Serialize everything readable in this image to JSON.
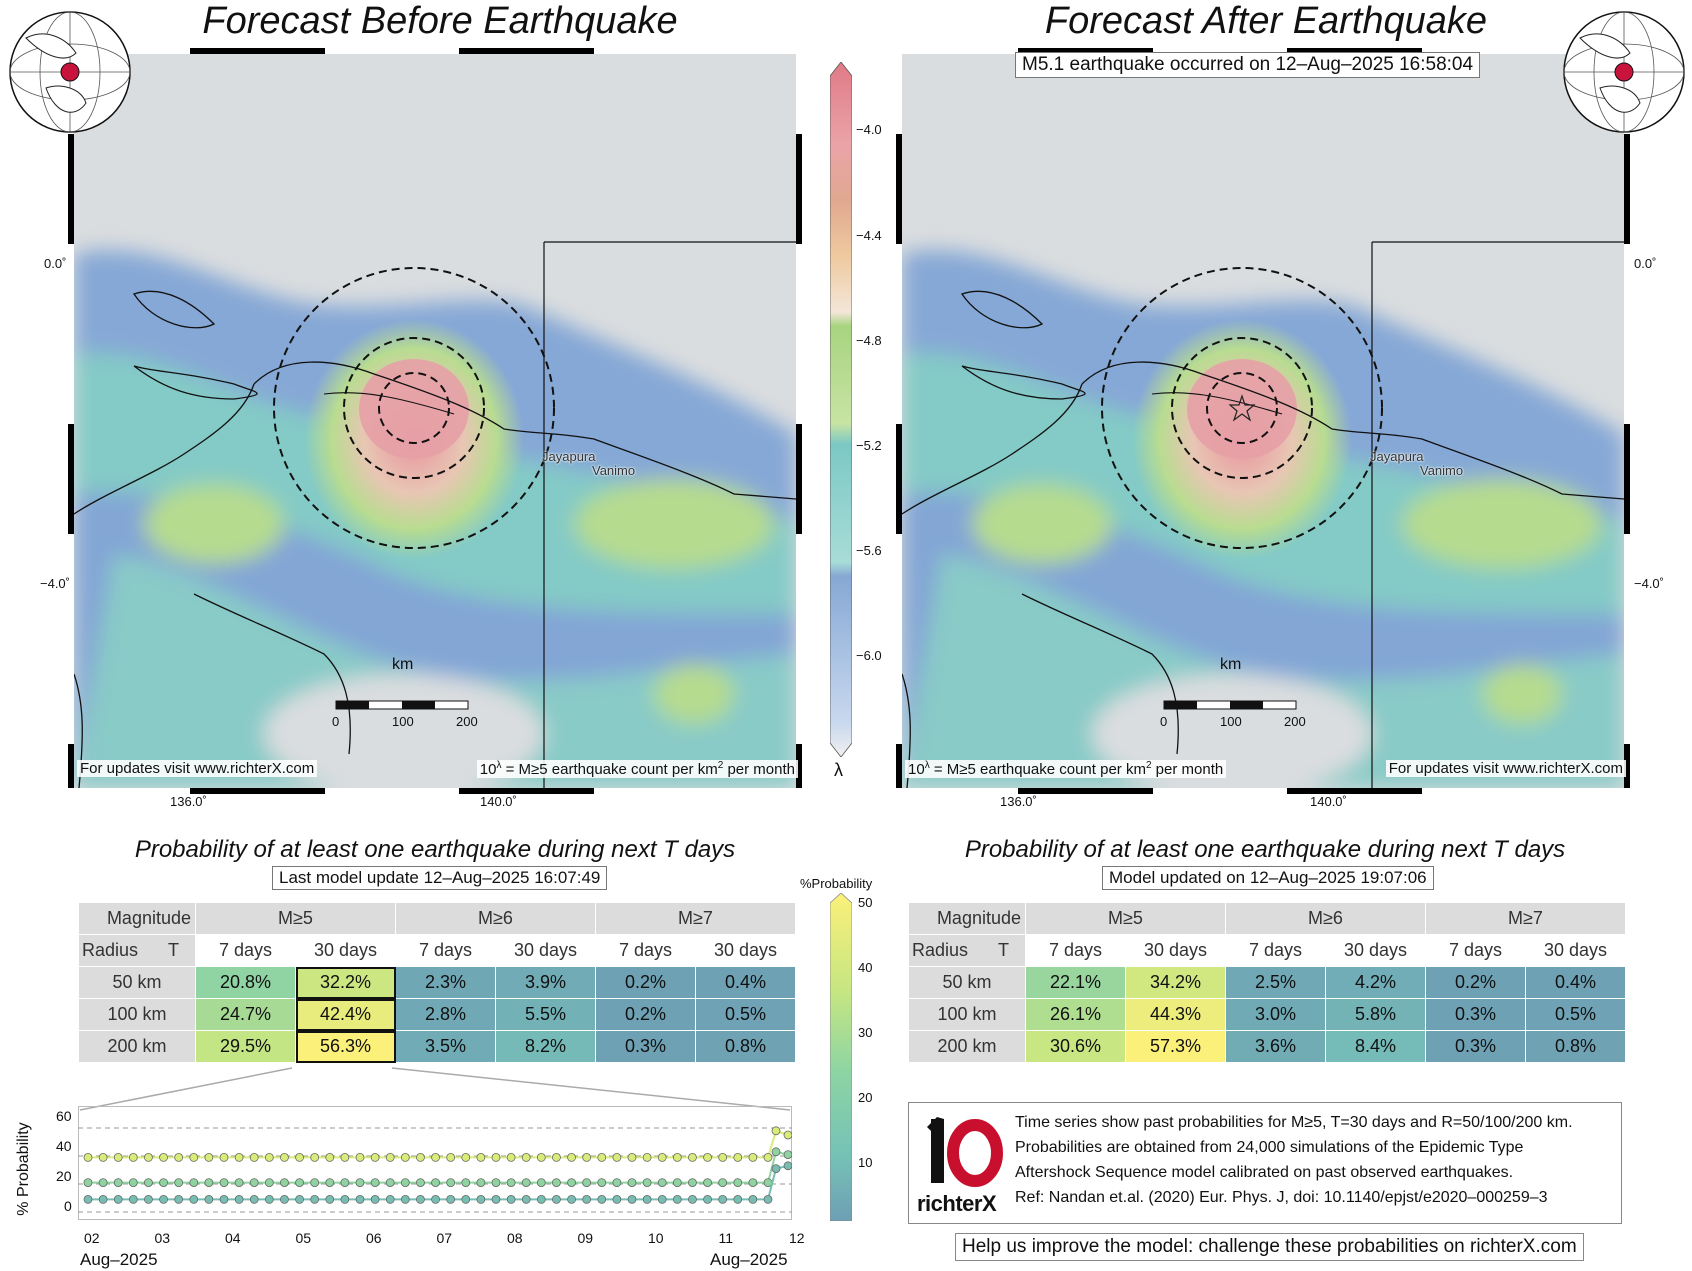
{
  "left_map": {
    "title": "Forecast Before Earthquake",
    "footer_left": "For updates visit www.richterX.com",
    "footer_right_prefix": "10",
    "footer_right_sup": "λ",
    "footer_right_main": " = M≥5 earthquake count per km",
    "footer_right_sup2": "2",
    "footer_right_suffix": " per month"
  },
  "right_map": {
    "title": "Forecast After Earthquake",
    "event_label": "M5.1 earthquake occurred on 12–Aug–2025 16:58:04",
    "footer_left_prefix": "10",
    "footer_left_sup": "λ",
    "footer_left_main": " = M≥5 earthquake count per km",
    "footer_left_sup2": "2",
    "footer_left_suffix": " per month",
    "footer_right": "For updates visit www.richterX.com"
  },
  "map_axes": {
    "lat_labels": [
      "0.0˚",
      "−4.0˚"
    ],
    "lon_labels": [
      "136.0˚",
      "140.0˚"
    ]
  },
  "cities": [
    "Jayapura",
    "Vanimo"
  ],
  "scale_bar": {
    "unit": "km",
    "ticks": [
      "0",
      "100",
      "200"
    ]
  },
  "colorbar": {
    "ticks": [
      "−4.0",
      "−4.4",
      "−4.8",
      "−5.2",
      "−5.6",
      "−6.0"
    ],
    "symbol": "λ"
  },
  "prob_colorbar": {
    "title": "%Probability",
    "ticks": [
      "50",
      "40",
      "30",
      "20",
      "10"
    ]
  },
  "left_table": {
    "title": "Probability of at least one earthquake during next T days",
    "subtitle": "Last model update 12–Aug–2025 16:07:49",
    "corner_top": "Magnitude",
    "corner_left": "Radius",
    "corner_right": "T",
    "magnitudes": [
      "M≥5",
      "M≥6",
      "M≥7"
    ],
    "periods": [
      "7 days",
      "30 days",
      "7 days",
      "30 days",
      "7 days",
      "30 days"
    ],
    "rows": [
      {
        "radius": "50 km",
        "values": [
          "20.8%",
          "32.2%",
          "2.3%",
          "3.9%",
          "0.2%",
          "0.4%"
        ]
      },
      {
        "radius": "100 km",
        "values": [
          "24.7%",
          "42.4%",
          "2.8%",
          "5.5%",
          "0.2%",
          "0.5%"
        ]
      },
      {
        "radius": "200 km",
        "values": [
          "29.5%",
          "56.3%",
          "3.5%",
          "8.2%",
          "0.3%",
          "0.8%"
        ]
      }
    ]
  },
  "right_table": {
    "title": "Probability of at least one earthquake during next T days",
    "subtitle": "Model updated on 12–Aug–2025 19:07:06",
    "corner_top": "Magnitude",
    "corner_left": "Radius",
    "corner_right": "T",
    "magnitudes": [
      "M≥5",
      "M≥6",
      "M≥7"
    ],
    "periods": [
      "7 days",
      "30 days",
      "7 days",
      "30 days",
      "7 days",
      "30 days"
    ],
    "rows": [
      {
        "radius": "50 km",
        "values": [
          "22.1%",
          "34.2%",
          "2.5%",
          "4.2%",
          "0.2%",
          "0.4%"
        ]
      },
      {
        "radius": "100 km",
        "values": [
          "26.1%",
          "44.3%",
          "3.0%",
          "5.8%",
          "0.3%",
          "0.5%"
        ]
      },
      {
        "radius": "200 km",
        "values": [
          "30.6%",
          "57.3%",
          "3.6%",
          "8.4%",
          "0.3%",
          "0.8%"
        ]
      }
    ]
  },
  "timeseries": {
    "ylabel": "% Probability",
    "yticks": [
      "60",
      "40",
      "20",
      "0"
    ],
    "xticks": [
      "02",
      "03",
      "04",
      "05",
      "06",
      "07",
      "08",
      "09",
      "10",
      "11",
      "12"
    ],
    "x_start_label": "Aug–2025",
    "x_end_label": "Aug–2025",
    "series": [
      {
        "name": "200 km",
        "baseline": 39,
        "jump": [
          58,
          55
        ]
      },
      {
        "name": "100 km",
        "baseline": 21,
        "jump": [
          43,
          41
        ]
      },
      {
        "name": "50 km",
        "baseline": 9,
        "jump": [
          31,
          33
        ]
      }
    ]
  },
  "info": {
    "logo_text": "richterX",
    "lines": [
      "Time series show past probabilities for M≥5, T=30 days and R=50/100/200 km.",
      "Probabilities are obtained from 24,000 simulations of the Epidemic Type",
      "Aftershock Sequence model calibrated on past observed earthquakes.",
      "Ref: Nandan et.al. (2020) Eur. Phys. J, doi: 10.1140/epjst/e2020–000259–3"
    ]
  },
  "help_text": "Help us improve the model: challenge these probabilities on richterX.com",
  "colors": {
    "ocean_gray": "#d9dcdd",
    "low_blue": "#7fa3d4",
    "teal": "#7cc7c4",
    "green": "#b6dc8c",
    "tan": "#e8c49c",
    "pink": "#e89ca4"
  }
}
